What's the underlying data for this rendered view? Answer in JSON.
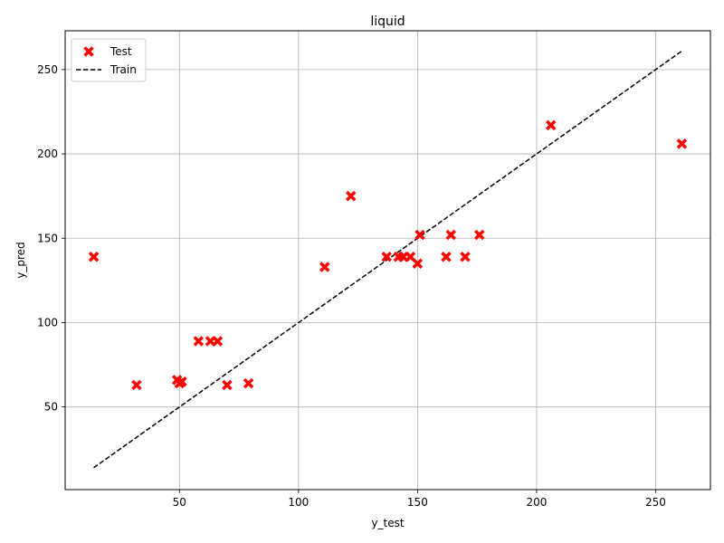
{
  "chart_data": {
    "type": "scatter",
    "title": "liquid",
    "xlabel": "y_test",
    "ylabel": "y_pred",
    "xlim": [
      2,
      273
    ],
    "ylim": [
      1,
      273
    ],
    "xticks": [
      50,
      100,
      150,
      200,
      250
    ],
    "yticks": [
      50,
      100,
      150,
      200,
      250
    ],
    "grid": true,
    "legend_position": "top-left",
    "series": [
      {
        "name": "Test",
        "kind": "scatter",
        "marker": "x",
        "color": "#ff0000",
        "points": [
          [
            14,
            139
          ],
          [
            32,
            63
          ],
          [
            49,
            66
          ],
          [
            51,
            65
          ],
          [
            50,
            64
          ],
          [
            58,
            89
          ],
          [
            63,
            89
          ],
          [
            66,
            89
          ],
          [
            70,
            63
          ],
          [
            79,
            64
          ],
          [
            111,
            133
          ],
          [
            122,
            175
          ],
          [
            137,
            139
          ],
          [
            142,
            139
          ],
          [
            144,
            139
          ],
          [
            147,
            139
          ],
          [
            150,
            135
          ],
          [
            151,
            152
          ],
          [
            162,
            139
          ],
          [
            164,
            152
          ],
          [
            170,
            139
          ],
          [
            176,
            152
          ],
          [
            206,
            217
          ],
          [
            261,
            206
          ]
        ]
      },
      {
        "name": "Train",
        "kind": "line",
        "dash": "dashed",
        "color": "#000000",
        "points": [
          [
            14,
            14
          ],
          [
            261,
            261
          ]
        ]
      }
    ]
  }
}
